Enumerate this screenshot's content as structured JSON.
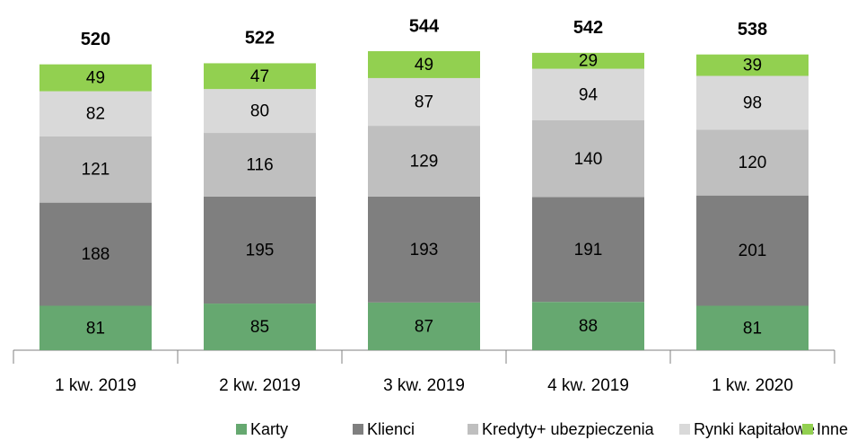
{
  "chart_data": {
    "type": "stacked_bar",
    "categories": [
      "1 kw. 2019",
      "2 kw. 2019",
      "3 kw. 2019",
      "4 kw. 2019",
      "1 kw. 2020"
    ],
    "totals": [
      520,
      522,
      544,
      542,
      538
    ],
    "series": [
      {
        "name": "Karty",
        "color": "#66a870",
        "values": [
          81,
          85,
          87,
          88,
          81
        ]
      },
      {
        "name": "Klienci",
        "color": "#7f7f7f",
        "values": [
          188,
          195,
          193,
          191,
          201
        ]
      },
      {
        "name": "Kredyty+ ubezpieczenia",
        "color": "#bfbfbf",
        "values": [
          121,
          116,
          129,
          140,
          120
        ]
      },
      {
        "name": "Rynki kapitałowe",
        "color": "#d9d9d9",
        "values": [
          82,
          80,
          87,
          94,
          98
        ]
      },
      {
        "name": "Inne",
        "color": "#92d050",
        "values": [
          49,
          47,
          49,
          29,
          39
        ]
      }
    ]
  }
}
